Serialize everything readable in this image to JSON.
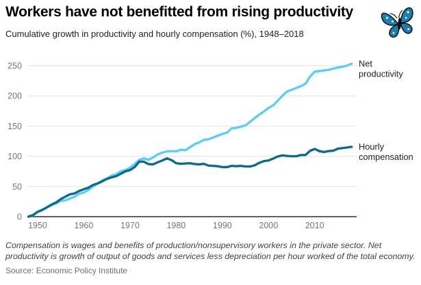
{
  "header": {
    "title": "Workers have not benefitted from rising productivity",
    "subtitle": "Cumulative growth in productivity and hourly compensation (%), 1948–2018",
    "logo_name": "butterfly-logo"
  },
  "footer": {
    "note": "Compensation is wages and benefits of production/nonsupervisory workers in the private sector. Net productivity is growth of output of goods and services less depreciation per hour worked of the total economy.",
    "source": "Source: Economic Policy Institute"
  },
  "chart_data": {
    "type": "line",
    "title": "Workers have not benefitted from rising productivity",
    "subtitle": "Cumulative growth in productivity and hourly compensation (%), 1948–2018",
    "xlabel": "",
    "ylabel": "",
    "grid": "horizontal",
    "legend_position": "right-end-labels",
    "xlim": [
      1948,
      2018.5
    ],
    "ylim": [
      0,
      260
    ],
    "xticks": [
      1950,
      1960,
      1970,
      1980,
      1990,
      2000,
      2010
    ],
    "yticks": [
      0,
      50,
      100,
      150,
      200,
      250
    ],
    "x": [
      1948,
      1949,
      1950,
      1951,
      1952,
      1953,
      1954,
      1955,
      1956,
      1957,
      1958,
      1959,
      1960,
      1961,
      1962,
      1963,
      1964,
      1965,
      1966,
      1967,
      1968,
      1969,
      1970,
      1971,
      1972,
      1973,
      1974,
      1975,
      1976,
      1977,
      1978,
      1979,
      1980,
      1981,
      1982,
      1983,
      1984,
      1985,
      1986,
      1987,
      1988,
      1989,
      1990,
      1991,
      1992,
      1993,
      1994,
      1995,
      1996,
      1997,
      1998,
      1999,
      2000,
      2001,
      2002,
      2003,
      2004,
      2005,
      2006,
      2007,
      2008,
      2009,
      2010,
      2011,
      2012,
      2013,
      2014,
      2015,
      2016,
      2017,
      2018
    ],
    "series": [
      {
        "name": "Net productivity",
        "slug": "net-productivity",
        "label_lines": [
          "Net",
          "productivity"
        ],
        "color": "#5CCEF5",
        "values": [
          0,
          2,
          8,
          11.5,
          15,
          19,
          22,
          26,
          27,
          30,
          33,
          38,
          40,
          44,
          50,
          55,
          60,
          63,
          68,
          70,
          75,
          77,
          81,
          87,
          94,
          96.5,
          94,
          98,
          103,
          106,
          108,
          108.5,
          108,
          111,
          110,
          115,
          120,
          123,
          127,
          128,
          131,
          134,
          137,
          139,
          146,
          147,
          149,
          151,
          157,
          163,
          169,
          174,
          180,
          184,
          192,
          200,
          207,
          210,
          213,
          216,
          220,
          232,
          240,
          241,
          242,
          243,
          245,
          247,
          248,
          250,
          253
        ]
      },
      {
        "name": "Hourly compensation",
        "slug": "hourly-compensation",
        "label_lines": [
          "Hourly",
          "compensation"
        ],
        "color": "#0E6A8C",
        "values": [
          0,
          2.5,
          8,
          11,
          15.5,
          20,
          23.5,
          29,
          33,
          37,
          38.5,
          42.5,
          45.5,
          48,
          52.5,
          55,
          58.5,
          62.5,
          65,
          67,
          71,
          75,
          77,
          82,
          91,
          91,
          87,
          86.5,
          90,
          93,
          96.5,
          93.5,
          88.5,
          87.5,
          88,
          88.5,
          87,
          86.5,
          87.5,
          84.5,
          84,
          83.5,
          82,
          82,
          84,
          83.5,
          84,
          83,
          83,
          85,
          89,
          92,
          93,
          96,
          99.5,
          101.5,
          100.5,
          100,
          100,
          102,
          102,
          109,
          112,
          108.5,
          107,
          108.5,
          109,
          112.5,
          113.5,
          114.5,
          115.6
        ]
      }
    ],
    "colors": {
      "grid": "#E2E2E2",
      "axis": "#2B2B2B",
      "tick_label": "#767676",
      "end_label": "#1f1f1f"
    }
  }
}
